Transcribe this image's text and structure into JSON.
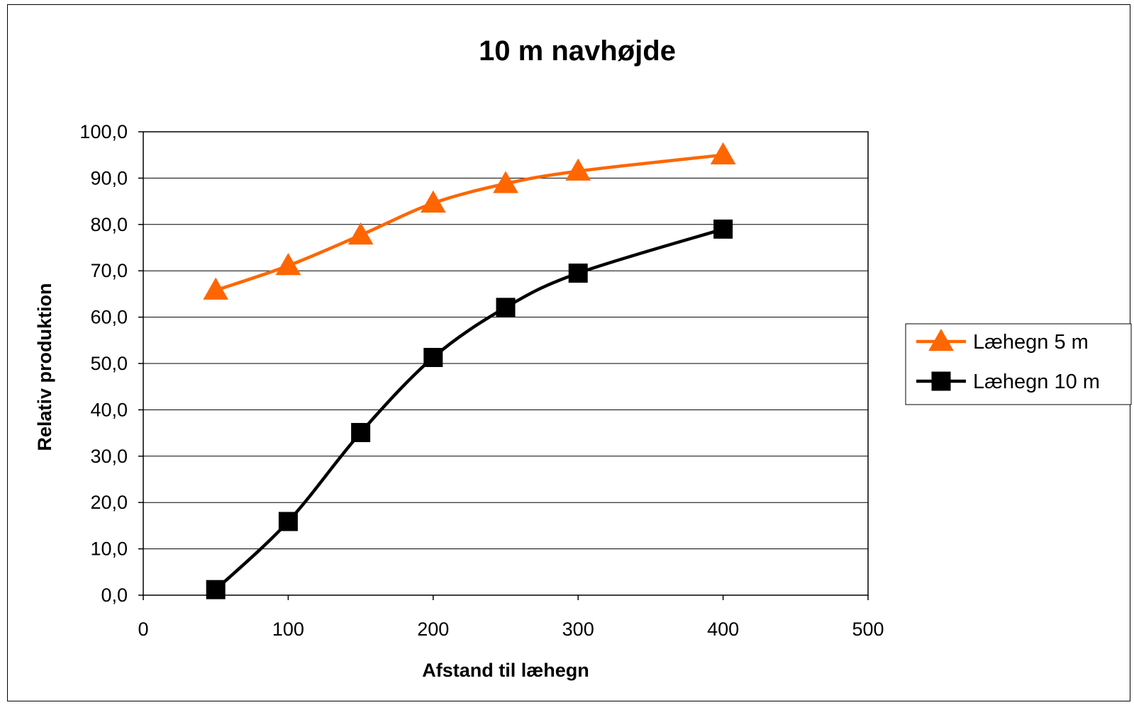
{
  "chart_data": {
    "type": "line",
    "title": "10 m navhøjde",
    "xlabel": "Afstand til læhegn",
    "ylabel": "Relativ produktion",
    "xlim": [
      0,
      500
    ],
    "ylim": [
      0,
      100
    ],
    "xticks": [
      "0",
      "100",
      "200",
      "300",
      "400",
      "500"
    ],
    "yticks": [
      "0,0",
      "10,0",
      "20,0",
      "30,0",
      "40,0",
      "50,0",
      "60,0",
      "70,0",
      "80,0",
      "90,0",
      "100,0"
    ],
    "grid": "horizontal",
    "legend_position": "right",
    "series": [
      {
        "name": "Læhegn 5 m",
        "color": "#FF6600",
        "marker": "triangle",
        "x": [
          50,
          100,
          150,
          200,
          250,
          300,
          400
        ],
        "y": [
          65.8,
          71.1,
          77.7,
          84.6,
          88.8,
          91.5,
          95.0
        ]
      },
      {
        "name": "Læhegn 10 m",
        "color": "#000000",
        "marker": "square",
        "x": [
          50,
          100,
          150,
          200,
          250,
          300,
          400
        ],
        "y": [
          1.2,
          15.9,
          35.1,
          51.3,
          62.1,
          69.5,
          79.0
        ]
      }
    ]
  }
}
